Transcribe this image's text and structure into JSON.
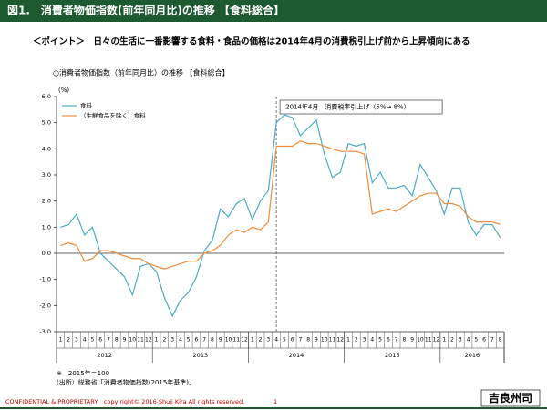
{
  "header": {
    "title": "図1.　消費者物価指数(前年同月比)の推移 【食料総合】",
    "point": "＜ポイント＞　日々の生活に一番影響する食料・食品の価格は2014年4月の消費税引上げ前から上昇傾向にある"
  },
  "chart_data": {
    "type": "line",
    "title": "○消費者物価指数（前年同月比）の推移 【食料総合】",
    "y_unit": "(%)",
    "categories": [
      "1",
      "2",
      "3",
      "4",
      "5",
      "6",
      "7",
      "8",
      "9",
      "10",
      "11",
      "12",
      "1",
      "2",
      "3",
      "4",
      "5",
      "6",
      "7",
      "8",
      "9",
      "10",
      "11",
      "12",
      "1",
      "2",
      "3",
      "4",
      "5",
      "6",
      "7",
      "8",
      "9",
      "10",
      "11",
      "12",
      "1",
      "2",
      "3",
      "4",
      "5",
      "6",
      "7",
      "8",
      "9",
      "10",
      "11",
      "12",
      "1",
      "2",
      "3",
      "4",
      "5",
      "6",
      "7",
      "8"
    ],
    "years": [
      "2012",
      "2013",
      "2014",
      "2015",
      "2016"
    ],
    "series": [
      {
        "name": "食料",
        "color": "#4bacc6",
        "values": [
          1.0,
          1.1,
          1.5,
          0.7,
          1.0,
          0.0,
          -0.3,
          -0.6,
          -0.9,
          -1.6,
          -0.5,
          -0.4,
          -0.7,
          -1.7,
          -2.4,
          -1.8,
          -1.5,
          -0.9,
          0.1,
          0.5,
          1.7,
          1.4,
          1.9,
          2.1,
          1.3,
          2.0,
          2.4,
          5.0,
          5.3,
          5.2,
          4.5,
          4.8,
          5.1,
          3.8,
          2.9,
          3.1,
          4.2,
          4.1,
          4.2,
          2.7,
          3.1,
          2.5,
          2.5,
          2.6,
          2.2,
          3.4,
          2.9,
          2.4,
          1.5,
          2.5,
          2.5,
          1.2,
          0.7,
          1.1,
          1.1,
          0.6
        ]
      },
      {
        "name": "（生鮮食品を除く）食料",
        "color": "#f08c3c",
        "values": [
          0.3,
          0.4,
          0.3,
          -0.3,
          -0.2,
          0.1,
          0.1,
          0.0,
          -0.1,
          -0.2,
          -0.2,
          -0.4,
          -0.5,
          -0.6,
          -0.5,
          -0.4,
          -0.3,
          -0.3,
          0.0,
          0.1,
          0.3,
          0.7,
          0.9,
          0.8,
          1.0,
          0.9,
          1.2,
          4.1,
          4.1,
          4.1,
          4.3,
          4.2,
          4.2,
          4.1,
          4.0,
          3.9,
          3.9,
          3.9,
          3.8,
          1.5,
          1.6,
          1.7,
          1.6,
          1.8,
          2.0,
          2.2,
          2.3,
          2.3,
          1.9,
          1.9,
          1.8,
          1.4,
          1.2,
          1.2,
          1.2,
          1.1
        ]
      }
    ],
    "ylim": [
      -3,
      6
    ],
    "yticks": [
      {
        "value": 6,
        "label": "6.0"
      },
      {
        "value": 5,
        "label": "5.0"
      },
      {
        "value": 4,
        "label": "4.0"
      },
      {
        "value": 3,
        "label": "3.0"
      },
      {
        "value": 2,
        "label": "2.0"
      },
      {
        "value": 1,
        "label": "1.0"
      },
      {
        "value": 0,
        "label": "0.0"
      },
      {
        "value": -1,
        "label": "-1.0"
      },
      {
        "value": -2,
        "label": "-2.0"
      },
      {
        "value": -3,
        "label": "-3.0"
      }
    ],
    "grid": false,
    "legend": "top-left",
    "annotation": {
      "text": "2014年4月　消費税率引上げ（5%→ 8%）",
      "category_index": 27
    }
  },
  "notes": [
    "※　2015年＝100",
    "(出所）総務省「消費者物価指数(2015年基準)」"
  ],
  "footer": {
    "confidential": "CONFIDENTIAL & PROPRIETARY　copy right© 2016 Shuji Kira All rights reserved.",
    "page": "1",
    "name": "吉良州司"
  }
}
